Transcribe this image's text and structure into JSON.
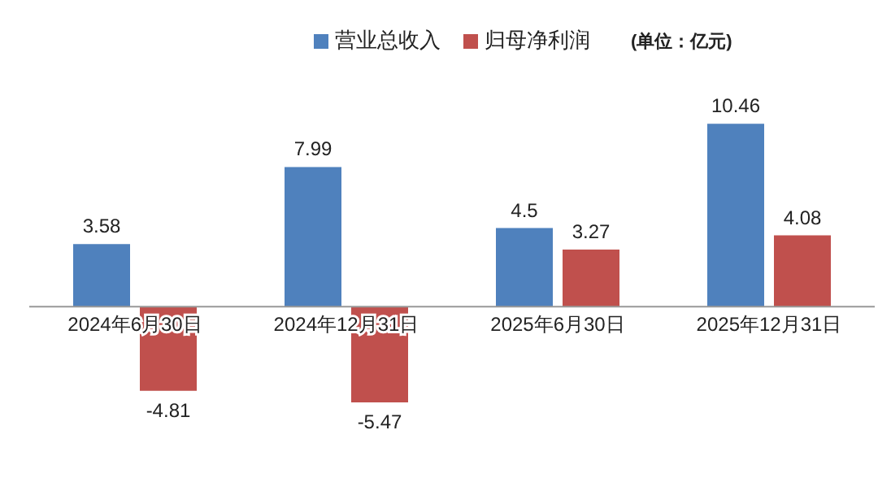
{
  "chart_data": {
    "type": "bar",
    "categories": [
      "2024年6月30日",
      "2024年12月31日",
      "2025年6月30日",
      "2025年12月31日"
    ],
    "series": [
      {
        "name": "营业总收入",
        "color": "#4f81bd",
        "values": [
          3.58,
          7.99,
          4.5,
          10.46
        ]
      },
      {
        "name": "归母净利润",
        "color": "#c0504d",
        "values": [
          -4.81,
          -5.47,
          3.27,
          4.08
        ]
      }
    ],
    "data_labels": true,
    "legend": "top",
    "annotations": [
      "(单位：亿元)"
    ]
  }
}
